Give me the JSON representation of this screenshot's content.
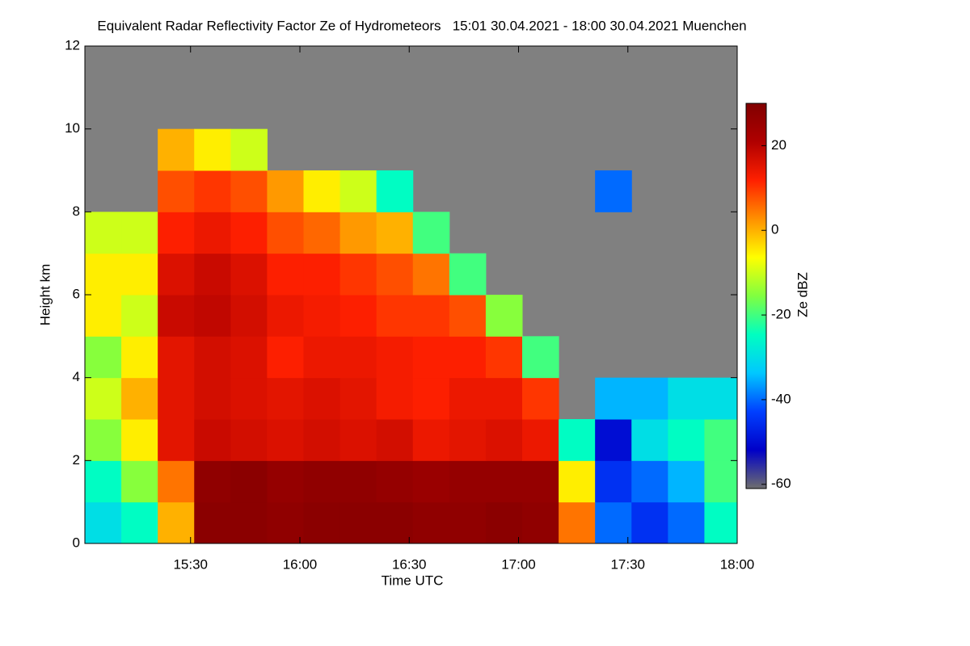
{
  "chart_data": {
    "type": "heatmap",
    "title": "Equivalent Radar Reflectivity Factor Ze of Hydrometeors   15:01 30.04.2021 - 18:00 30.04.2021 Muenchen",
    "x_label": "Time UTC",
    "y_label": "Height km",
    "colorbar_label": "Ze dBZ",
    "xlim": [
      15.0167,
      18.0
    ],
    "xticks": [
      {
        "value": 15.5,
        "label": "15:30"
      },
      {
        "value": 16,
        "label": "16:00"
      },
      {
        "value": 16.5,
        "label": "16:30"
      },
      {
        "value": 17,
        "label": "17:00"
      },
      {
        "value": 17.5,
        "label": "17:30"
      },
      {
        "value": 18,
        "label": "18:00"
      }
    ],
    "ylim": [
      0,
      12
    ],
    "yticks": [
      0,
      2,
      4,
      6,
      8,
      10,
      12
    ],
    "zlim": [
      -61,
      30
    ],
    "zticks": [
      20,
      0,
      -20,
      -40,
      -60
    ],
    "no_data_color": "#808080",
    "colormap": [
      "#6e6e6e",
      "#0000c8",
      "#0040ff",
      "#00c8ff",
      "#00ffc0",
      "#80ff40",
      "#ffff00",
      "#ff9000",
      "#ff2000",
      "#b00000",
      "#800000"
    ],
    "x": [
      15.1,
      15.2667,
      15.4333,
      15.6,
      15.7667,
      15.9333,
      16.1,
      16.2667,
      16.4333,
      16.6,
      16.7667,
      16.9333,
      17.1,
      17.2667,
      17.4333,
      17.6,
      17.7667,
      17.9333
    ],
    "y": [
      0.5,
      1.5,
      2.5,
      3.5,
      4.5,
      5.5,
      6.5,
      7.5,
      8.5,
      9.5,
      10.5,
      11.5
    ],
    "values": [
      [
        -30,
        -25,
        0,
        28,
        28,
        27,
        28,
        28,
        28,
        27,
        27,
        28,
        27,
        5,
        -40,
        -45,
        -40,
        -25
      ],
      [
        -25,
        -15,
        5,
        27,
        28,
        26,
        27,
        27,
        26,
        25,
        26,
        26,
        26,
        -5,
        -45,
        -40,
        -35,
        -20
      ],
      [
        -15,
        -5,
        15,
        18,
        17,
        16,
        17,
        16,
        17,
        14,
        15,
        16,
        14,
        -25,
        -50,
        -30,
        -25,
        -20
      ],
      [
        -10,
        0,
        15,
        17,
        16,
        15,
        16,
        15,
        13,
        12,
        14,
        14,
        10,
        null,
        -35,
        -35,
        -30,
        -30
      ],
      [
        -15,
        -5,
        15,
        17,
        16,
        12,
        14,
        14,
        13,
        12,
        12,
        10,
        -20,
        null,
        null,
        null,
        null,
        null
      ],
      [
        -5,
        -10,
        18,
        19,
        17,
        14,
        13,
        12,
        10,
        10,
        8,
        -15,
        null,
        null,
        null,
        null,
        null,
        null
      ],
      [
        -5,
        -5,
        16,
        18,
        16,
        12,
        12,
        10,
        8,
        5,
        -20,
        null,
        null,
        null,
        null,
        null,
        null,
        null
      ],
      [
        -10,
        -10,
        12,
        14,
        12,
        8,
        6,
        2,
        0,
        -20,
        null,
        null,
        null,
        null,
        null,
        null,
        null,
        null
      ],
      [
        null,
        null,
        8,
        10,
        8,
        2,
        -5,
        -10,
        -25,
        null,
        null,
        null,
        null,
        null,
        -40,
        null,
        null,
        null
      ],
      [
        null,
        null,
        0,
        -5,
        -10,
        null,
        null,
        null,
        null,
        null,
        null,
        null,
        null,
        null,
        null,
        null,
        null,
        null
      ],
      [
        null,
        null,
        null,
        null,
        null,
        null,
        null,
        null,
        null,
        null,
        null,
        null,
        null,
        null,
        null,
        null,
        null,
        null
      ],
      [
        null,
        null,
        null,
        null,
        null,
        null,
        null,
        null,
        null,
        null,
        null,
        null,
        null,
        null,
        null,
        null,
        null,
        null
      ]
    ]
  }
}
